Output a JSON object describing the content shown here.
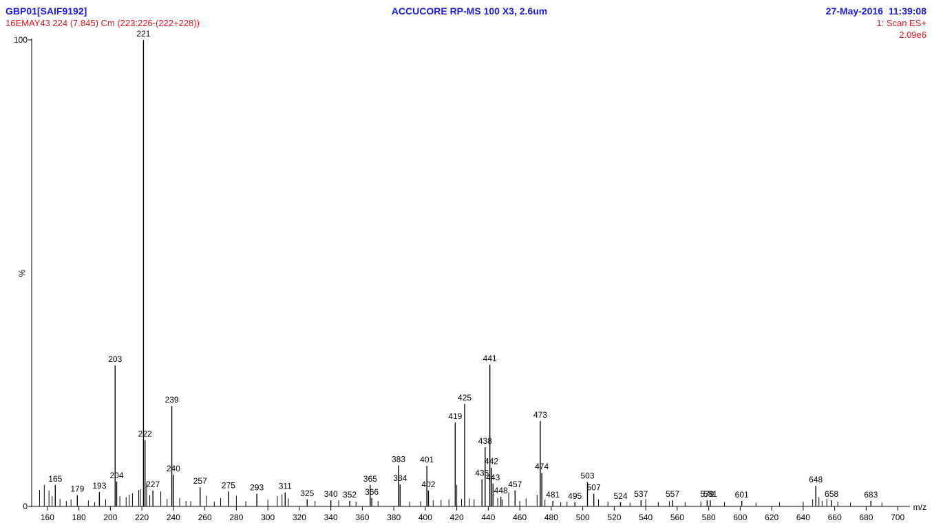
{
  "chart_data": {
    "type": "spectrum",
    "title": "ACCUCORE RP-MS 100 X3, 2.6um",
    "sample": "GBP01[SAIF9192]",
    "scan_info": "16EMAY43 224 (7.845) Cm (223:226-(222+228))",
    "datetime": "27-May-2016  11:39:08",
    "scan_mode": "1: Scan ES+",
    "intensity_max": "2.09e6",
    "x_label": "m/z",
    "y_label": "%",
    "color": "#000000",
    "xlim": [
      150,
      710
    ],
    "xticks": [
      160,
      180,
      200,
      220,
      240,
      260,
      280,
      300,
      320,
      340,
      360,
      380,
      400,
      420,
      440,
      460,
      480,
      500,
      520,
      540,
      560,
      580,
      600,
      620,
      640,
      660,
      680,
      700
    ],
    "ylim": [
      0,
      100
    ],
    "yticks": [
      0,
      100
    ],
    "peaks": {
      "x": [
        165,
        179,
        193,
        203,
        204,
        221,
        222,
        227,
        239,
        240,
        257,
        275,
        293,
        311,
        325,
        340,
        352,
        365,
        366,
        383,
        384,
        401,
        402,
        419,
        425,
        436,
        438,
        441,
        442,
        443,
        448,
        457,
        473,
        474,
        481,
        495,
        503,
        507,
        524,
        537,
        557,
        579,
        581,
        601,
        648,
        658,
        683
      ],
      "values": [
        4.6,
        2.4,
        3.1,
        30.2,
        5.3,
        100,
        14.2,
        3.4,
        21.5,
        6.8,
        4.1,
        3.2,
        2.7,
        3.0,
        1.5,
        1.3,
        1.2,
        4.6,
        1.8,
        8.8,
        4.7,
        8.7,
        3.4,
        18.0,
        22.0,
        5.8,
        12.7,
        30.4,
        8.3,
        4.9,
        2.1,
        3.4,
        18.3,
        7.2,
        1.2,
        0.9,
        5.2,
        2.7,
        0.9,
        1.3,
        1.3,
        1.3,
        1.3,
        1.2,
        4.4,
        1.3,
        1.2
      ]
    },
    "minor_peaks": {
      "x": [
        155,
        158,
        161,
        163,
        168,
        172,
        175,
        186,
        190,
        197,
        206,
        210,
        212,
        214,
        218,
        219,
        223,
        225,
        232,
        236,
        244,
        248,
        251,
        261,
        266,
        270,
        280,
        286,
        300,
        306,
        309,
        313,
        330,
        345,
        356,
        370,
        390,
        397,
        405,
        410,
        415,
        420,
        423,
        428,
        431,
        446,
        449,
        453,
        460,
        464,
        471,
        476,
        486,
        490,
        510,
        516,
        530,
        540,
        548,
        555,
        565,
        575,
        590,
        610,
        625,
        640,
        646,
        650,
        652,
        655,
        662,
        670,
        690
      ],
      "values": [
        3.5,
        4.6,
        3.4,
        2.2,
        1.6,
        1.2,
        1.5,
        1.3,
        0.9,
        1.5,
        2.2,
        2.0,
        2.5,
        2.8,
        3.5,
        3.7,
        5.0,
        2.4,
        3.2,
        1.6,
        1.8,
        1.2,
        1.1,
        2.3,
        1.0,
        1.8,
        2.3,
        1.1,
        1.4,
        2.2,
        2.6,
        1.7,
        1.2,
        1.3,
        1.0,
        1.2,
        1.0,
        1.1,
        1.3,
        1.4,
        1.5,
        4.6,
        1.6,
        1.7,
        1.5,
        1.8,
        1.5,
        3.0,
        1.2,
        1.7,
        2.5,
        1.4,
        0.9,
        1.0,
        1.5,
        1.0,
        0.8,
        1.6,
        0.9,
        1.1,
        0.9,
        1.0,
        0.9,
        0.8,
        0.9,
        1.0,
        1.5,
        2.0,
        1.2,
        1.6,
        1.0,
        0.8,
        0.8
      ]
    }
  }
}
